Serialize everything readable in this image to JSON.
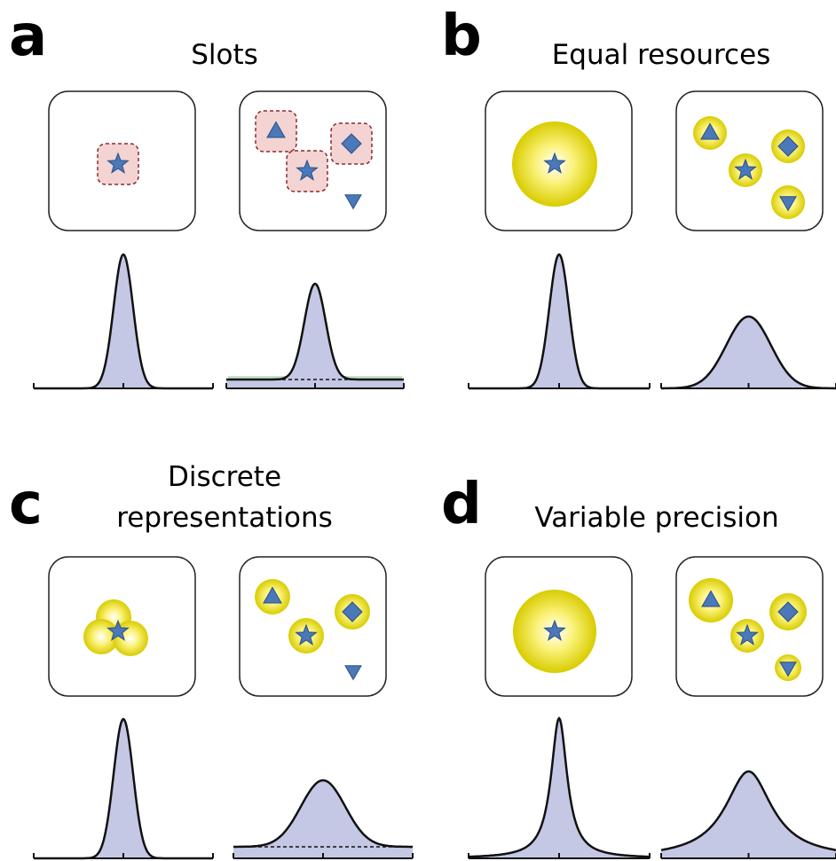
{
  "panels": [
    {
      "letter": "a",
      "title": [
        "Slots"
      ]
    },
    {
      "letter": "b",
      "title": [
        "Equal resources"
      ]
    },
    {
      "letter": "c",
      "title": [
        "Discrete",
        "representations"
      ]
    },
    {
      "letter": "d",
      "title": [
        "Variable precision"
      ]
    }
  ]
}
